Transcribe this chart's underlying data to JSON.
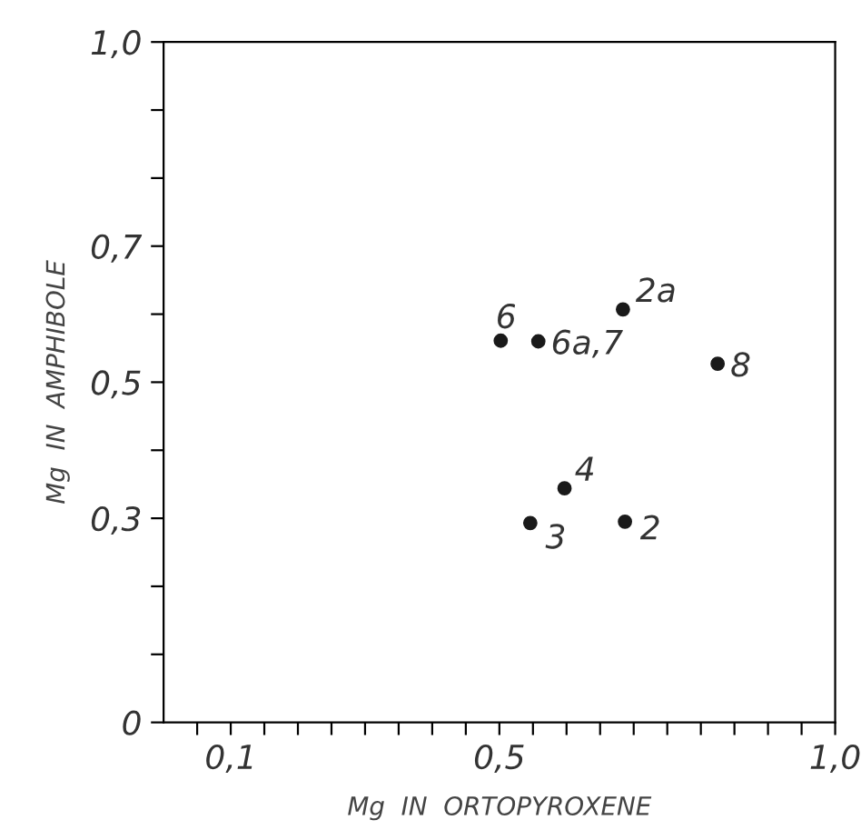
{
  "chart_data": {
    "type": "scatter",
    "xlabel": "Mg  IN  ORTOPYROXENE",
    "ylabel": "Mg  IN  AMPHIBOLE",
    "x": [
      0.502,
      0.558,
      0.684,
      0.825,
      0.597,
      0.546,
      0.687
    ],
    "series": [
      {
        "color": "#1a1a1a",
        "values": [
          0.561,
          0.56,
          0.607,
          0.527,
          0.344,
          0.293,
          0.295
        ]
      }
    ],
    "marker": "circle",
    "xlim": [
      0,
      1.0
    ],
    "ylim": [
      0,
      1.0
    ],
    "xticks": [
      {
        "value": 0.05,
        "label": null
      },
      {
        "value": 0.1,
        "label": "0,1"
      },
      {
        "value": 0.15,
        "label": null
      },
      {
        "value": 0.2,
        "label": null
      },
      {
        "value": 0.25,
        "label": null
      },
      {
        "value": 0.3,
        "label": null
      },
      {
        "value": 0.35,
        "label": null
      },
      {
        "value": 0.4,
        "label": null
      },
      {
        "value": 0.45,
        "label": null
      },
      {
        "value": 0.5,
        "label": "0,5"
      },
      {
        "value": 0.55,
        "label": null
      },
      {
        "value": 0.6,
        "label": null
      },
      {
        "value": 0.65,
        "label": null
      },
      {
        "value": 0.7,
        "label": null
      },
      {
        "value": 0.75,
        "label": null
      },
      {
        "value": 0.8,
        "label": null
      },
      {
        "value": 0.85,
        "label": null
      },
      {
        "value": 0.9,
        "label": null
      },
      {
        "value": 0.95,
        "label": null
      },
      {
        "value": 1.0,
        "label": "1,0"
      }
    ],
    "yticks": [
      0,
      {
        "value": 0.1,
        "label": null
      },
      {
        "value": 0.2,
        "label": null
      },
      {
        "value": 0.3,
        "label": "0,3"
      },
      {
        "value": 0.4,
        "label": null
      },
      {
        "value": 0.5,
        "label": "0,5"
      },
      {
        "value": 0.6,
        "label": null
      },
      {
        "value": 0.7,
        "label": "0,7"
      },
      {
        "value": 0.8,
        "label": null
      },
      {
        "value": 0.9,
        "label": null
      },
      {
        "value": 1.0,
        "label": "1,0"
      }
    ],
    "annotations": [
      {
        "text": "6",
        "x": 0.502,
        "y": 0.561
      },
      {
        "text": "6a,7",
        "x": 0.558,
        "y": 0.56
      },
      {
        "text": "2a",
        "x": 0.684,
        "y": 0.607
      },
      {
        "text": "8",
        "x": 0.825,
        "y": 0.527
      },
      {
        "text": "4",
        "x": 0.597,
        "y": 0.344
      },
      {
        "text": "3",
        "x": 0.546,
        "y": 0.293
      },
      {
        "text": "2",
        "x": 0.687,
        "y": 0.295
      }
    ],
    "grid": false,
    "legend": false
  }
}
